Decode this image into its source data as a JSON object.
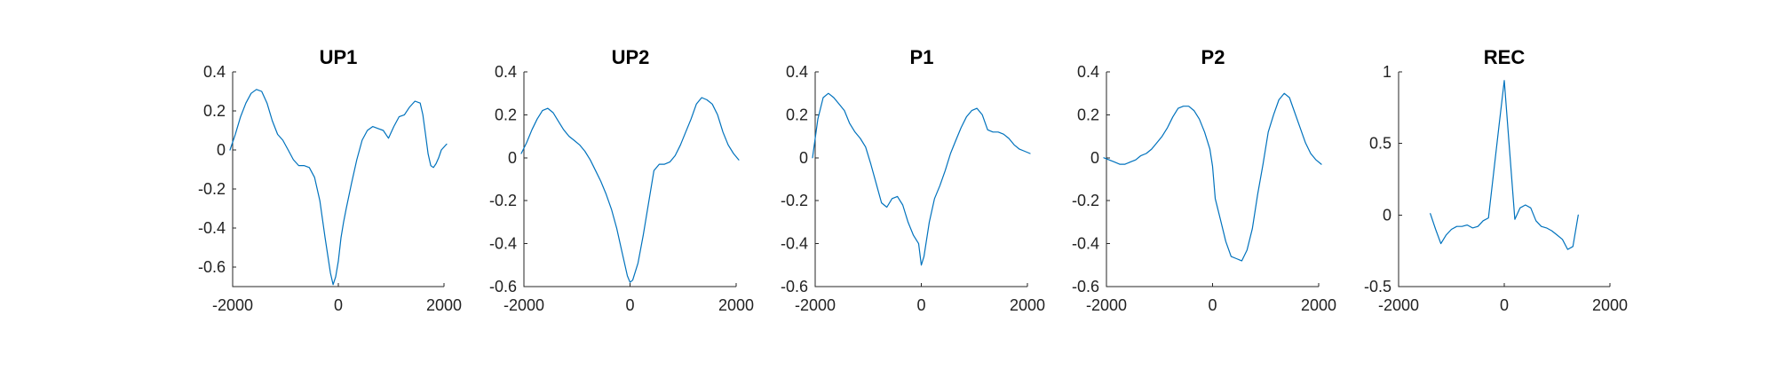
{
  "colors": {
    "line": "#0072BD",
    "axis": "#262626",
    "text": "#222222"
  },
  "chart_data": [
    {
      "type": "line",
      "title": "UP1",
      "xlabel": "",
      "ylabel": "",
      "xlim": [
        -2000,
        2000
      ],
      "ylim": [
        -0.7,
        0.4
      ],
      "xticks": [
        -2000,
        0,
        2000
      ],
      "xtick_labels": [
        "-2000",
        "0",
        "2000"
      ],
      "yticks": [
        0.4,
        0.2,
        0,
        -0.2,
        -0.4,
        -0.6
      ],
      "ytick_labels": [
        "0.4",
        "0.2",
        "0",
        "-0.2",
        "-0.4",
        "-0.6"
      ],
      "x": [
        -2050,
        -1950,
        -1850,
        -1750,
        -1650,
        -1550,
        -1450,
        -1350,
        -1250,
        -1150,
        -1050,
        -950,
        -850,
        -750,
        -650,
        -550,
        -450,
        -350,
        -250,
        -150,
        -100,
        -50,
        0,
        50,
        100,
        150,
        250,
        350,
        450,
        550,
        650,
        750,
        850,
        950,
        1050,
        1150,
        1250,
        1350,
        1450,
        1550,
        1600,
        1650,
        1700,
        1750,
        1800,
        1850,
        1900,
        1950,
        2050
      ],
      "y": [
        0.0,
        0.08,
        0.17,
        0.24,
        0.29,
        0.31,
        0.3,
        0.24,
        0.15,
        0.08,
        0.05,
        0.0,
        -0.05,
        -0.08,
        -0.08,
        -0.09,
        -0.14,
        -0.26,
        -0.45,
        -0.63,
        -0.69,
        -0.65,
        -0.57,
        -0.45,
        -0.37,
        -0.3,
        -0.17,
        -0.05,
        0.05,
        0.1,
        0.12,
        0.11,
        0.1,
        0.06,
        0.12,
        0.17,
        0.18,
        0.22,
        0.25,
        0.24,
        0.18,
        0.08,
        -0.02,
        -0.08,
        -0.09,
        -0.07,
        -0.04,
        0.0,
        0.03
      ]
    },
    {
      "type": "line",
      "title": "UP2",
      "xlabel": "",
      "ylabel": "",
      "xlim": [
        -2000,
        2000
      ],
      "ylim": [
        -0.6,
        0.4
      ],
      "xticks": [
        -2000,
        0,
        2000
      ],
      "xtick_labels": [
        "-2000",
        "0",
        "2000"
      ],
      "yticks": [
        0.4,
        0.2,
        0,
        -0.2,
        -0.4,
        -0.6
      ],
      "ytick_labels": [
        "0.4",
        "0.2",
        "0",
        "-0.2",
        "-0.4",
        "-0.6"
      ],
      "x": [
        -2050,
        -1950,
        -1850,
        -1750,
        -1650,
        -1550,
        -1450,
        -1350,
        -1250,
        -1150,
        -1050,
        -950,
        -850,
        -750,
        -650,
        -550,
        -450,
        -350,
        -250,
        -150,
        -50,
        0,
        50,
        150,
        250,
        350,
        450,
        550,
        650,
        750,
        850,
        950,
        1050,
        1150,
        1250,
        1350,
        1450,
        1550,
        1650,
        1750,
        1850,
        1950,
        2050
      ],
      "y": [
        0.02,
        0.07,
        0.13,
        0.18,
        0.22,
        0.23,
        0.21,
        0.17,
        0.13,
        0.1,
        0.08,
        0.06,
        0.03,
        -0.01,
        -0.06,
        -0.11,
        -0.17,
        -0.24,
        -0.33,
        -0.44,
        -0.55,
        -0.58,
        -0.57,
        -0.49,
        -0.36,
        -0.21,
        -0.06,
        -0.03,
        -0.03,
        -0.02,
        0.01,
        0.06,
        0.12,
        0.18,
        0.25,
        0.28,
        0.27,
        0.25,
        0.2,
        0.12,
        0.06,
        0.02,
        -0.01
      ]
    },
    {
      "type": "line",
      "title": "P1",
      "xlabel": "",
      "ylabel": "",
      "xlim": [
        -2000,
        2000
      ],
      "ylim": [
        -0.6,
        0.4
      ],
      "xticks": [
        -2000,
        0,
        2000
      ],
      "xtick_labels": [
        "-2000",
        "0",
        "2000"
      ],
      "yticks": [
        0.4,
        0.2,
        0,
        -0.2,
        -0.4,
        -0.6
      ],
      "ytick_labels": [
        "0.4",
        "0.2",
        "0",
        "-0.2",
        "-0.4",
        "-0.6"
      ],
      "x": [
        -2050,
        -1950,
        -1850,
        -1750,
        -1650,
        -1550,
        -1450,
        -1350,
        -1250,
        -1150,
        -1050,
        -950,
        -850,
        -750,
        -650,
        -550,
        -450,
        -350,
        -250,
        -150,
        -50,
        0,
        50,
        150,
        250,
        350,
        450,
        550,
        650,
        750,
        850,
        950,
        1050,
        1150,
        1250,
        1350,
        1450,
        1550,
        1650,
        1750,
        1850,
        1950,
        2050
      ],
      "y": [
        0.0,
        0.18,
        0.28,
        0.3,
        0.28,
        0.25,
        0.22,
        0.16,
        0.12,
        0.09,
        0.05,
        -0.03,
        -0.12,
        -0.21,
        -0.23,
        -0.19,
        -0.18,
        -0.22,
        -0.3,
        -0.36,
        -0.4,
        -0.5,
        -0.46,
        -0.3,
        -0.19,
        -0.13,
        -0.06,
        0.02,
        0.08,
        0.14,
        0.19,
        0.22,
        0.23,
        0.2,
        0.13,
        0.12,
        0.12,
        0.11,
        0.09,
        0.06,
        0.04,
        0.03,
        0.02
      ]
    },
    {
      "type": "line",
      "title": "P2",
      "xlabel": "",
      "ylabel": "",
      "xlim": [
        -2000,
        2000
      ],
      "ylim": [
        -0.6,
        0.4
      ],
      "xticks": [
        -2000,
        0,
        2000
      ],
      "xtick_labels": [
        "-2000",
        "0",
        "2000"
      ],
      "yticks": [
        0.4,
        0.2,
        0,
        -0.2,
        -0.4,
        -0.6
      ],
      "ytick_labels": [
        "0.4",
        "0.2",
        "0",
        "-0.2",
        "-0.4",
        "-0.6"
      ],
      "x": [
        -2050,
        -1950,
        -1850,
        -1750,
        -1650,
        -1550,
        -1450,
        -1350,
        -1250,
        -1150,
        -1050,
        -950,
        -850,
        -750,
        -650,
        -550,
        -450,
        -350,
        -250,
        -150,
        -50,
        0,
        50,
        150,
        250,
        350,
        450,
        550,
        650,
        750,
        850,
        950,
        1050,
        1150,
        1250,
        1350,
        1450,
        1550,
        1650,
        1750,
        1850,
        1950,
        2050
      ],
      "y": [
        0.0,
        -0.01,
        -0.02,
        -0.03,
        -0.03,
        -0.02,
        -0.01,
        0.01,
        0.02,
        0.04,
        0.07,
        0.1,
        0.14,
        0.19,
        0.23,
        0.24,
        0.24,
        0.22,
        0.18,
        0.12,
        0.04,
        -0.04,
        -0.19,
        -0.29,
        -0.39,
        -0.46,
        -0.47,
        -0.48,
        -0.43,
        -0.33,
        -0.17,
        -0.03,
        0.12,
        0.2,
        0.27,
        0.3,
        0.28,
        0.21,
        0.14,
        0.07,
        0.02,
        -0.01,
        -0.03
      ]
    },
    {
      "type": "line",
      "title": "REC",
      "xlabel": "",
      "ylabel": "",
      "xlim": [
        -2000,
        2000
      ],
      "ylim": [
        -0.5,
        1
      ],
      "xticks": [
        -2000,
        0,
        2000
      ],
      "xtick_labels": [
        "-2000",
        "0",
        "2000"
      ],
      "yticks": [
        1,
        0.5,
        0,
        -0.5
      ],
      "ytick_labels": [
        "1",
        "0.5",
        "0",
        "-0.5"
      ],
      "x": [
        -1400,
        -1300,
        -1200,
        -1100,
        -1000,
        -900,
        -800,
        -700,
        -600,
        -500,
        -400,
        -300,
        -200,
        -100,
        0,
        100,
        200,
        300,
        400,
        500,
        600,
        700,
        800,
        900,
        1000,
        1100,
        1200,
        1300,
        1400
      ],
      "y": [
        0.01,
        -0.1,
        -0.2,
        -0.14,
        -0.1,
        -0.08,
        -0.08,
        -0.07,
        -0.09,
        -0.08,
        -0.04,
        -0.02,
        0.3,
        0.62,
        0.94,
        0.45,
        -0.03,
        0.05,
        0.07,
        0.05,
        -0.04,
        -0.08,
        -0.09,
        -0.11,
        -0.14,
        -0.17,
        -0.24,
        -0.22,
        0.0
      ]
    }
  ]
}
